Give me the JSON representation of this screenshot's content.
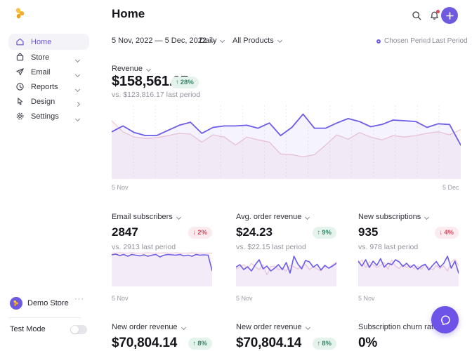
{
  "accent_color": "#6c5ce7",
  "header": {
    "title": "Home"
  },
  "sidebar": {
    "items": [
      {
        "label": "Home",
        "icon": "home-icon",
        "active": true,
        "chevron": null
      },
      {
        "label": "Store",
        "icon": "store-icon",
        "active": false,
        "chevron": "down"
      },
      {
        "label": "Email",
        "icon": "send-icon",
        "active": false,
        "chevron": "down"
      },
      {
        "label": "Reports",
        "icon": "clock-icon",
        "active": false,
        "chevron": "down"
      },
      {
        "label": "Design",
        "icon": "cursor-icon",
        "active": false,
        "chevron": "right"
      },
      {
        "label": "Settings",
        "icon": "gear-icon",
        "active": false,
        "chevron": "down"
      }
    ],
    "store_name": "Demo Store",
    "more_label": "···",
    "test_mode": {
      "label": "Test Mode",
      "enabled": false
    }
  },
  "filters": {
    "date_range": "5 Nov, 2022 — 5 Dec, 2022",
    "interval": "Daily",
    "product": "All Products"
  },
  "legend": {
    "chosen_label": "Chosen Period",
    "last_label": "Last Period"
  },
  "revenue_card": {
    "label": "Revenue",
    "value": "$158,561.97",
    "delta_arrow": "↑",
    "delta": "28%",
    "delta_direction": "up",
    "comparison": "vs. $123,816.17 last period"
  },
  "metric_cards": [
    {
      "label": "Email subscribers",
      "value": "2847",
      "delta_arrow": "↓",
      "delta": "2%",
      "delta_direction": "down",
      "comparison": "vs. 2913 last period",
      "x_label": "5 Nov"
    },
    {
      "label": "Avg. order revenue",
      "value": "$24.23",
      "delta_arrow": "↑",
      "delta": "9%",
      "delta_direction": "up",
      "comparison": "vs. $22.15 last period",
      "x_label": "5 Nov"
    },
    {
      "label": "New subscriptions",
      "value": "935",
      "delta_arrow": "↓",
      "delta": "4%",
      "delta_direction": "down",
      "comparison": "vs. 978 last period",
      "x_label": "5 Nov"
    }
  ],
  "bottom_cards": [
    {
      "label": "New order revenue",
      "value": "$70,804.14",
      "delta_arrow": "↑",
      "delta": "8%",
      "delta_direction": "up"
    },
    {
      "label": "New order revenue",
      "value": "$70,804.14",
      "delta_arrow": "↑",
      "delta": "8%",
      "delta_direction": "up"
    },
    {
      "label": "Subscription churn rate",
      "value": "0%",
      "delta_arrow": "",
      "delta": "",
      "delta_direction": "none"
    }
  ],
  "chart_data": [
    {
      "id": "revenue-trend",
      "type": "line",
      "title": "Revenue",
      "x_start_label": "5 Nov",
      "x_end_label": "5 Dec",
      "ylim": [
        0,
        100
      ],
      "grid": {
        "vlines": 15,
        "style": "dashed"
      },
      "legend_position": "top-right-of-page",
      "series": [
        {
          "name": "Chosen Period",
          "color": "#6c5ce7",
          "width": 1.8,
          "fill": "rgba(108,92,231,0.07)",
          "values": [
            64,
            72,
            63,
            59,
            59,
            66,
            73,
            77,
            62,
            70,
            72,
            72,
            73,
            69,
            76,
            59,
            70,
            88,
            69,
            69,
            76,
            82,
            78,
            71,
            74,
            80,
            79,
            78,
            70,
            75,
            74,
            46
          ]
        },
        {
          "name": "Last Period",
          "color": "#f0c9da",
          "width": 1.3,
          "fill": "rgba(240,201,218,0.18)",
          "values": [
            79,
            64,
            57,
            55,
            56,
            59,
            62,
            61,
            50,
            60,
            57,
            46,
            57,
            53,
            50,
            34,
            33,
            30,
            33,
            46,
            60,
            54,
            63,
            57,
            53,
            59,
            57,
            59,
            62,
            64,
            60,
            67
          ]
        }
      ]
    },
    {
      "id": "email-subscribers-trend",
      "type": "line",
      "title": "Email subscribers",
      "x_start_label": "5 Nov",
      "ylim": [
        0,
        100
      ],
      "series": [
        {
          "name": "Chosen Period",
          "color": "#6c5ce7",
          "width": 1.6,
          "fill": "rgba(108,92,231,0.07)",
          "values": [
            90,
            92,
            88,
            91,
            86,
            91,
            89,
            87,
            90,
            86,
            89,
            91,
            84,
            89,
            91,
            90,
            89,
            91,
            87,
            89,
            86,
            91,
            89,
            90,
            89,
            45
          ]
        },
        {
          "name": "Last Period",
          "color": "#f0c9da",
          "width": 1.2,
          "fill": "rgba(240,201,218,0.15)",
          "values": [
            95,
            95,
            96,
            95,
            95,
            96,
            95,
            95,
            95,
            96,
            95,
            95,
            95,
            96,
            95,
            95,
            96,
            95,
            95,
            95,
            96,
            95,
            95,
            95,
            95,
            95
          ]
        }
      ]
    },
    {
      "id": "avg-order-revenue-trend",
      "type": "line",
      "title": "Avg. order revenue",
      "x_start_label": "5 Nov",
      "ylim": [
        0,
        100
      ],
      "series": [
        {
          "name": "Chosen Period",
          "color": "#6c5ce7",
          "width": 1.6,
          "fill": "rgba(108,92,231,0.07)",
          "values": [
            55,
            62,
            48,
            56,
            44,
            62,
            76,
            50,
            58,
            44,
            52,
            62,
            48,
            68,
            38,
            86,
            64,
            50,
            74,
            70,
            55,
            63,
            47,
            60,
            52,
            58,
            66
          ]
        },
        {
          "name": "Last Period",
          "color": "#f0c9da",
          "width": 1.2,
          "fill": "rgba(240,201,218,0.15)",
          "values": [
            50,
            56,
            62,
            52,
            66,
            56,
            48,
            62,
            33,
            56,
            58,
            48,
            52,
            44,
            60,
            56,
            50,
            58,
            63,
            48,
            56,
            50,
            44,
            58,
            52,
            62,
            70
          ]
        }
      ]
    },
    {
      "id": "new-subscriptions-trend",
      "type": "line",
      "title": "New subscriptions",
      "x_start_label": "5 Nov",
      "ylim": [
        0,
        100
      ],
      "series": [
        {
          "name": "Chosen Period",
          "color": "#6c5ce7",
          "width": 1.6,
          "fill": "rgba(108,92,231,0.07)",
          "values": [
            72,
            58,
            76,
            54,
            72,
            60,
            79,
            55,
            66,
            62,
            76,
            70,
            57,
            66,
            54,
            62,
            49,
            58,
            63,
            47,
            60,
            71,
            55,
            66,
            86,
            52,
            72,
            38
          ]
        },
        {
          "name": "Last Period",
          "color": "#f0c9da",
          "width": 1.2,
          "fill": "rgba(240,201,218,0.15)",
          "values": [
            66,
            76,
            54,
            70,
            62,
            54,
            60,
            68,
            49,
            76,
            58,
            51,
            62,
            54,
            60,
            51,
            58,
            49,
            62,
            54,
            47,
            60,
            51,
            58,
            44,
            70,
            77,
            60
          ]
        }
      ]
    }
  ]
}
